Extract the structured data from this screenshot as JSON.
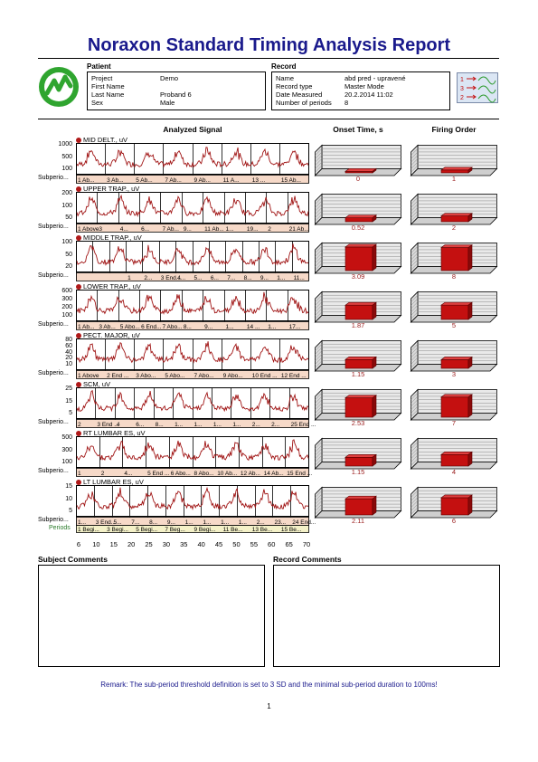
{
  "report": {
    "title": "Noraxon Standard Timing Analysis Report",
    "remark": "Remark: The sub-period threshold definition is set to 3 SD and  the minimal sub-period duration to 100ms!",
    "page_number": "1"
  },
  "patient": {
    "heading": "Patient",
    "rows": [
      {
        "label": "Project",
        "value": "Demo"
      },
      {
        "label": "First Name",
        "value": ""
      },
      {
        "label": "Last Name",
        "value": "Proband 6"
      },
      {
        "label": "Sex",
        "value": "Male"
      }
    ]
  },
  "record": {
    "heading": "Record",
    "rows": [
      {
        "label": "Name",
        "value": "abd pred - upravené"
      },
      {
        "label": "Record type",
        "value": "Master Mode"
      },
      {
        "label": "Date Measured",
        "value": "20.2.2014 11:02"
      },
      {
        "label": "Number of periods",
        "value": "8"
      }
    ]
  },
  "legend_icon": {
    "labels": [
      "1",
      "3",
      "2"
    ]
  },
  "columns": {
    "signal": "Analyzed Signal",
    "onset": "Onset Time, s",
    "firing": "Firing Order"
  },
  "colors": {
    "signal": "#a01414",
    "bar": "#c41010",
    "title": "#1a1a8c",
    "subperiod_bg": "#f6d9c8",
    "grid": "#808080"
  },
  "channels": [
    {
      "name": "MID DELT., uV",
      "yticks": [
        "1000",
        "500",
        "100"
      ],
      "sub_label": "Subperio...",
      "subperiods": [
        "1 Ab...",
        "3 Ab...",
        "5 Ab...",
        "7 Ab...",
        "9 Ab...",
        "11 A...",
        "13 ...",
        "15 Ab..."
      ],
      "onset": "0",
      "onset_value": 0.0,
      "firing": "1",
      "firing_value": 1
    },
    {
      "name": "UPPER TRAP., uV",
      "yticks": [
        "200",
        "100",
        "50"
      ],
      "sub_label": "Subperio...",
      "subperiods": [
        "1 Above",
        "3",
        "4...",
        "6...",
        "7 Ab...",
        "9...",
        "11 Ab...",
        "1...",
        "19...",
        "2",
        "21 Ab..."
      ],
      "onset": "0.52",
      "onset_value": 0.52,
      "firing": "2",
      "firing_value": 2
    },
    {
      "name": "MIDDLE TRAP., uV",
      "yticks": [
        "100",
        "50",
        "20"
      ],
      "sub_label": "Subperio...",
      "subperiods": [
        "",
        "",
        "",
        "1",
        "2...",
        "3 End...",
        "4...",
        "5...",
        "6...",
        "7...",
        "8...",
        "9...",
        "1...",
        "11..."
      ],
      "onset": "3.09",
      "onset_value": 3.09,
      "firing": "8",
      "firing_value": 8
    },
    {
      "name": "LOWER TRAP., uV",
      "yticks": [
        "600",
        "300",
        "200",
        "100"
      ],
      "sub_label": "Subperio...",
      "subperiods": [
        "1 Ab...",
        "3 Ab...",
        "5 Abo...",
        "6 End...",
        "7 Abo...",
        "8...",
        "9...",
        "1...",
        "14 ...",
        "1...",
        "17..."
      ],
      "onset": "1.87",
      "onset_value": 1.87,
      "firing": "5",
      "firing_value": 5
    },
    {
      "name": "PECT. MAJOR, uV",
      "yticks": [
        "80",
        "60",
        "40",
        "20",
        "10"
      ],
      "sub_label": "Subperio...",
      "subperiods": [
        "1 Above",
        "2 End ...",
        "3 Abo...",
        "5 Abo...",
        "7 Abo...",
        "9 Abo...",
        "10 End ...",
        "12 End ..."
      ],
      "onset": "1.15",
      "onset_value": 1.15,
      "firing": "3",
      "firing_value": 3
    },
    {
      "name": "SCM, uV",
      "yticks": [
        "25",
        "15",
        "5"
      ],
      "sub_label": "Subperio...",
      "subperiods": [
        "2",
        "3 End ...",
        "4",
        "6...",
        "8...",
        "1...",
        "1...",
        "1...",
        "1...",
        "2...",
        "2...",
        "25 End ..."
      ],
      "onset": "2.53",
      "onset_value": 2.53,
      "firing": "7",
      "firing_value": 7
    },
    {
      "name": "RT LUMBAR ES, uV",
      "yticks": [
        "500",
        "300",
        "100"
      ],
      "sub_label": "Subperio...",
      "subperiods": [
        "1",
        "2",
        "4...",
        "5 End ...",
        "6 Abo...",
        "8 Abo...",
        "10 Ab...",
        "12 Ab...",
        "14 Ab...",
        "15 End ..."
      ],
      "onset": "1.15",
      "onset_value": 1.15,
      "firing": "4",
      "firing_value": 4
    },
    {
      "name": "LT LUMBAR ES, uV",
      "yticks": [
        "15",
        "10",
        "5"
      ],
      "sub_label": "Subperio...",
      "subperiods": [
        "1...",
        "3 End...",
        "5...",
        "7...",
        "8...",
        "9...",
        "1...",
        "1...",
        "1...",
        "1...",
        "2...",
        "23...",
        "24 End..."
      ],
      "periods_label": "Periods",
      "periods": [
        "1 Begi...",
        "3 Begi...",
        "5 Begi...",
        "7 Beg...",
        "9 Begi...",
        "11 Be...",
        "13 Be...",
        "15 Be..."
      ],
      "onset": "2.11",
      "onset_value": 2.11,
      "firing": "6",
      "firing_value": 6
    }
  ],
  "x_axis": {
    "ticks": [
      "6",
      "10",
      "15",
      "20",
      "25",
      "30",
      "35",
      "40",
      "45",
      "50",
      "55",
      "60",
      "65",
      "70"
    ]
  },
  "comments": {
    "subject": "Subject Comments",
    "record": "Record Comments"
  }
}
